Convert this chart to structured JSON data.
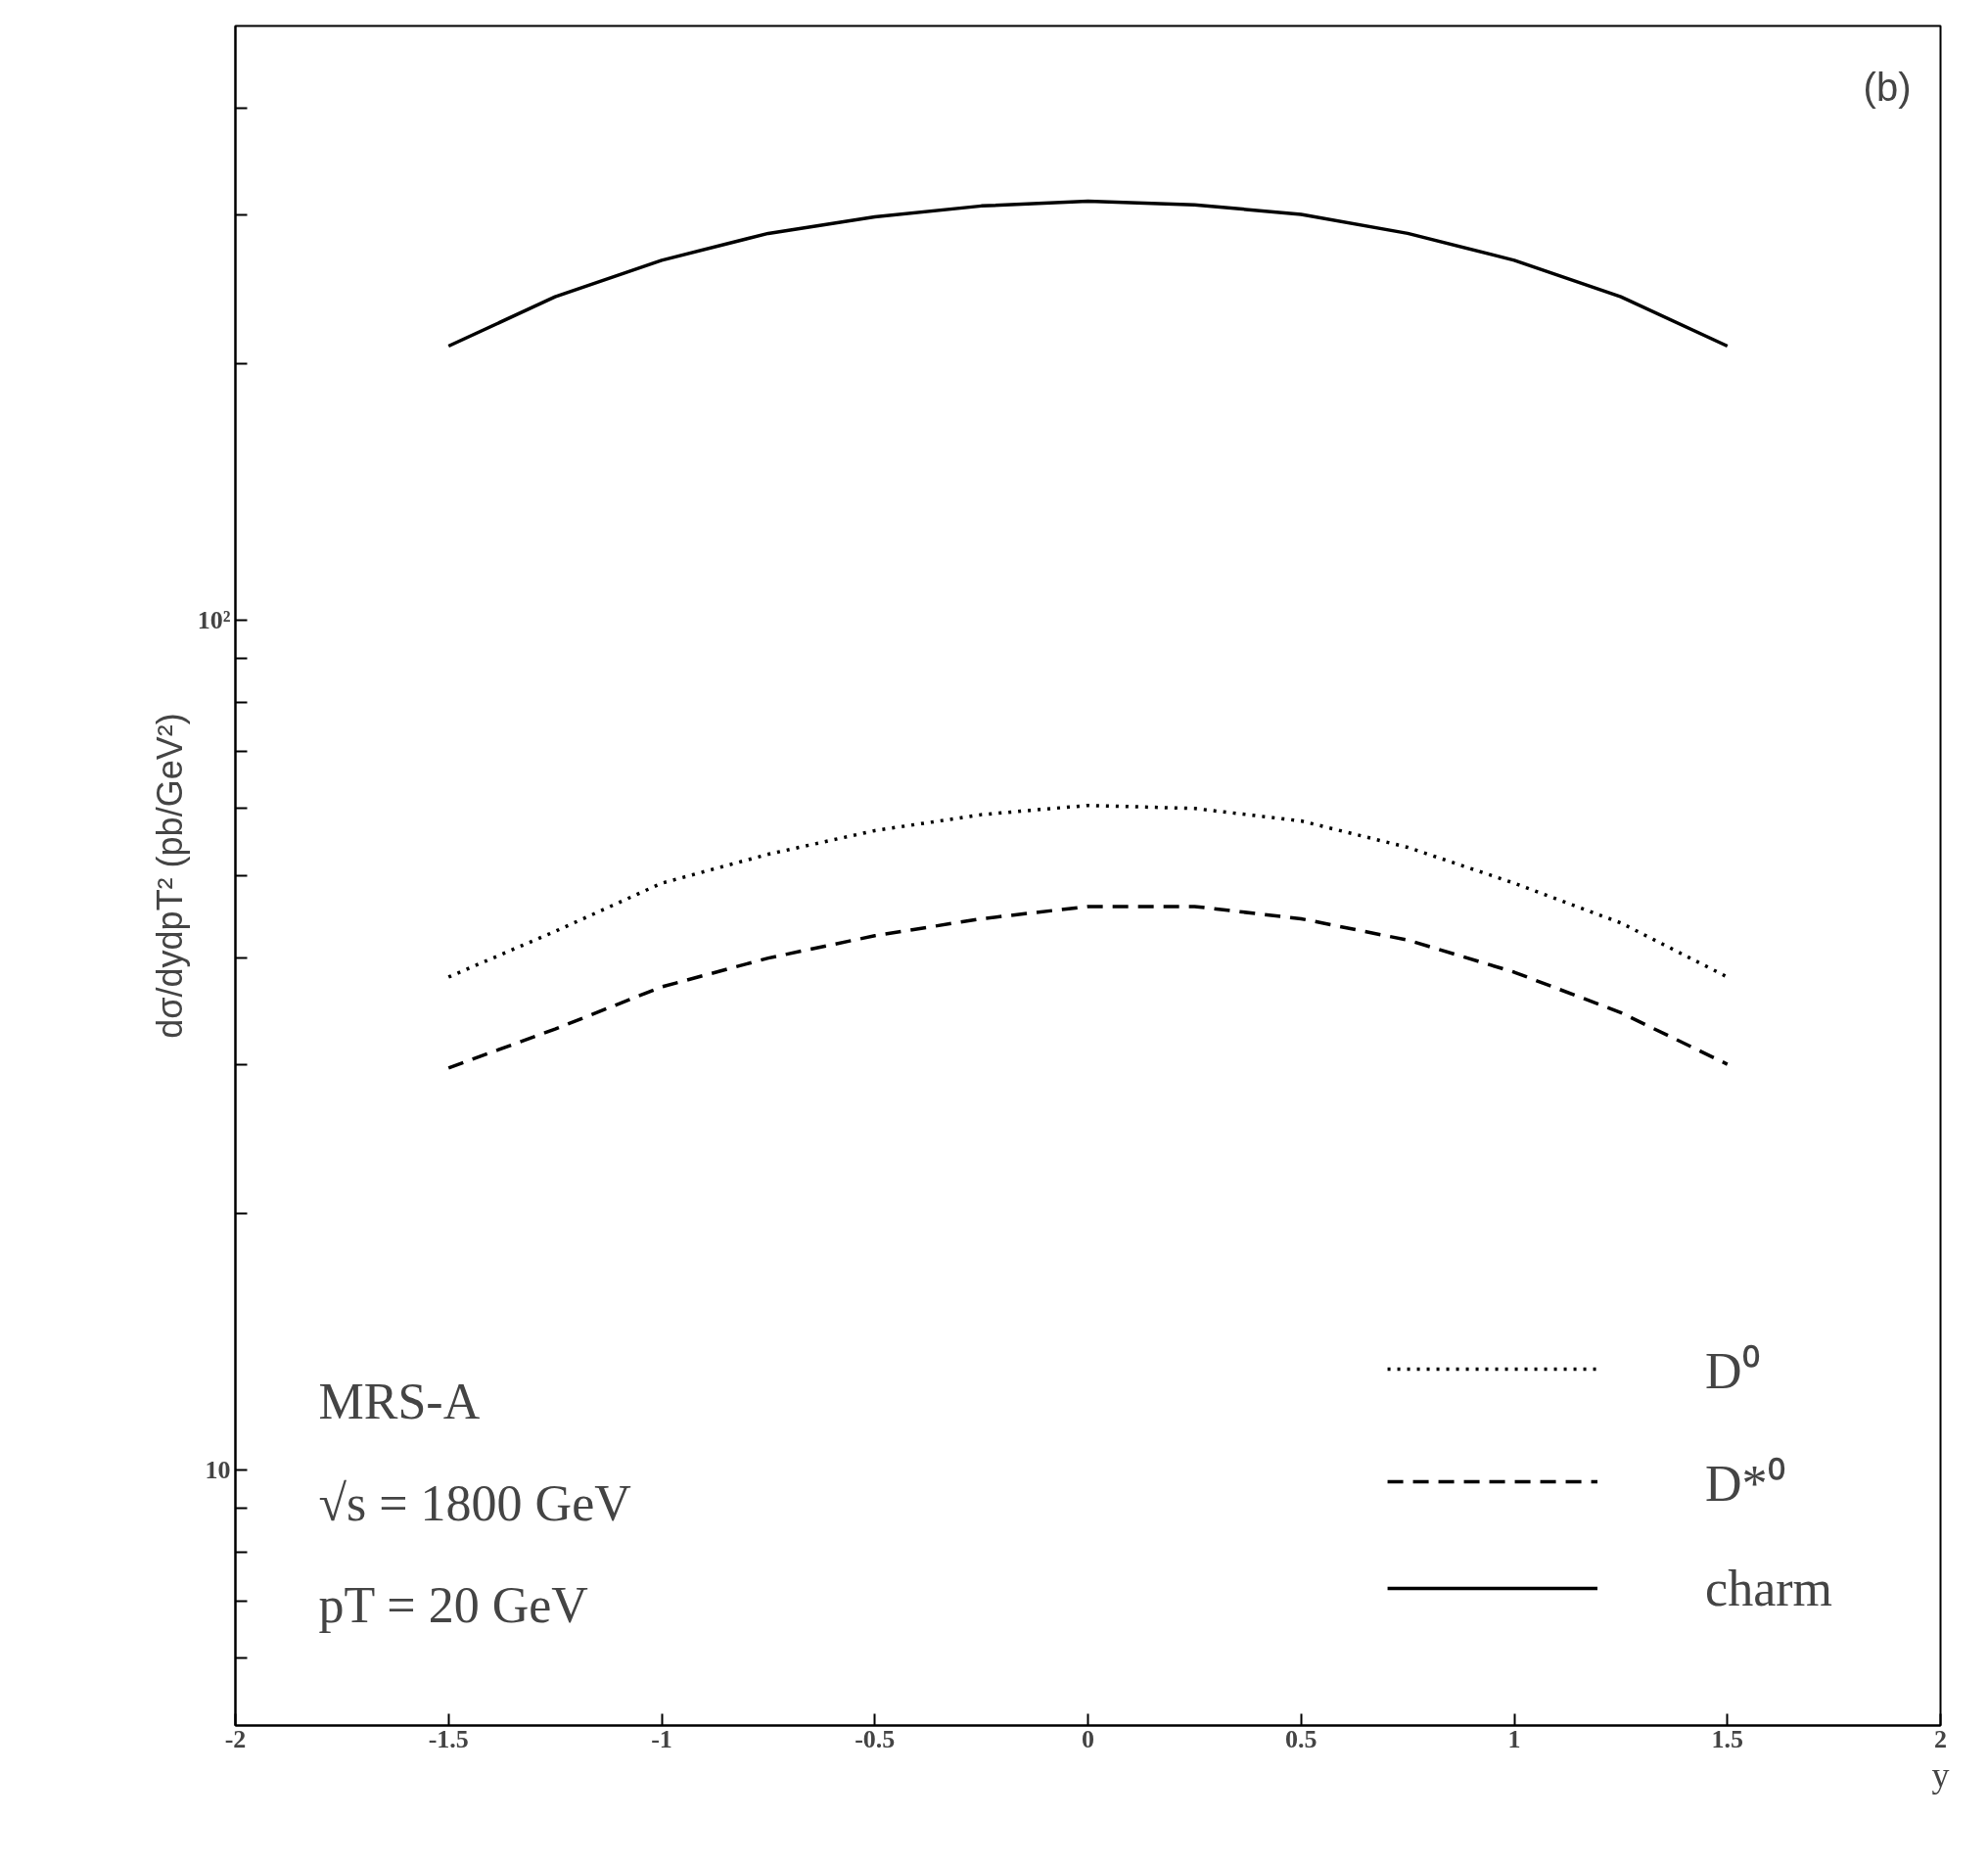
{
  "chart_data": {
    "type": "line",
    "xlabel": "y",
    "ylabel": "dσ/dydpT² (pb/GeV²)",
    "log": "y",
    "grid": false,
    "legend": "bottom right",
    "x": [
      -1.5,
      -1.25,
      -1,
      -0.75,
      -0.5,
      -0.25,
      0,
      0.25,
      0.5,
      0.75,
      1,
      1.25,
      1.5
    ],
    "series": [
      {
        "name": "D⁰",
        "color": "#000000",
        "line_style": "dotted",
        "values": [
          38,
          43,
          49,
          53,
          56.5,
          59,
          60.5,
          60,
          58,
          54,
          49,
          44,
          38
        ]
      },
      {
        "name": "D*⁰",
        "color": "#000000",
        "line_style": "dashed",
        "values": [
          29.7,
          33,
          37,
          40,
          42.5,
          44.5,
          46,
          46,
          44.5,
          42,
          38.5,
          34.5,
          30
        ]
      },
      {
        "name": "charm",
        "color": "#000000",
        "line_style": "solid",
        "values": [
          210,
          240,
          265,
          285,
          298,
          307,
          311,
          308,
          300,
          285,
          265,
          240,
          210
        ]
      }
    ],
    "xlim": [
      -2,
      2
    ],
    "xticks": [
      -2,
      -1.5,
      -1,
      -0.5,
      0,
      0.5,
      1,
      1.5,
      2
    ],
    "ylim": [
      5,
      500
    ],
    "yticks": [
      {
        "value": 6,
        "label": null
      },
      {
        "value": 7,
        "label": null
      },
      {
        "value": 8,
        "label": null
      },
      {
        "value": 9,
        "label": null
      },
      {
        "value": 10,
        "label": "10"
      },
      {
        "value": 20,
        "label": null
      },
      {
        "value": 30,
        "label": null
      },
      {
        "value": 40,
        "label": null
      },
      {
        "value": 50,
        "label": null
      },
      {
        "value": 60,
        "label": null
      },
      {
        "value": 70,
        "label": null
      },
      {
        "value": 80,
        "label": null
      },
      {
        "value": 90,
        "label": null
      },
      {
        "value": 100,
        "label": "10²"
      },
      {
        "value": 200,
        "label": null
      },
      {
        "value": 300,
        "label": null
      },
      {
        "value": 400,
        "label": null
      }
    ],
    "annotations": [
      "(b)",
      "MRS-A",
      "√s = 1800  GeV",
      "pT = 20 GeV"
    ]
  }
}
